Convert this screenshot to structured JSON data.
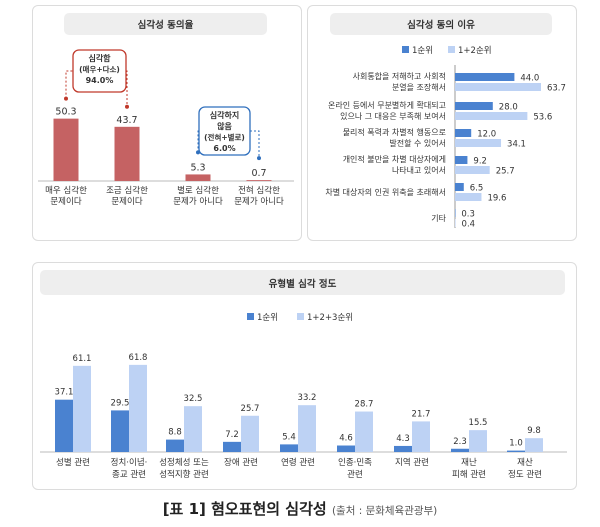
{
  "colors": {
    "bar1": "#c56263",
    "bar_dark": "#4a82d0",
    "bar_light": "#bdd2f4",
    "callout_red": "#c0392b",
    "callout_blue": "#2f6fbd"
  },
  "chart_data": [
    {
      "type": "bar",
      "title": "심각성 동의율",
      "categories": [
        "매우 심각한\n문제이다",
        "조금 심각한\n문제이다",
        "별로 심각한\n문제가 아니다",
        "전혀 심각한\n문제가 아니다"
      ],
      "values": [
        50.3,
        43.7,
        5.3,
        0.7
      ],
      "value_labels": [
        "50.3",
        "43.7",
        "5.3",
        "0.7"
      ],
      "ylim": [
        0,
        60
      ],
      "annotations": [
        {
          "lines": [
            "심각함",
            "(매우+다소)",
            "94.0%"
          ],
          "groups": [
            0,
            1
          ],
          "color": "red"
        },
        {
          "lines": [
            "심각하지",
            "않음",
            "(전혀+별로)",
            "6.0%"
          ],
          "groups": [
            2,
            3
          ],
          "color": "blue"
        }
      ]
    },
    {
      "type": "bar",
      "orientation": "horizontal",
      "title": "심각성 동의 이유",
      "legend": [
        "1순위",
        "1+2순위"
      ],
      "categories": [
        "사회통합을 저해하고 사회적\n분열을 조장해서",
        "온라인 등에서 무분별하게 확대되고\n있으나 그 대응은 부족해 보여서",
        "물리적 폭력과 차별적 행동으로\n발전할 수 있어서",
        "개인적 불만을 차별 대상자에게\n나타내고 있어서",
        "차별 대상자의 인권 위축을 초래해서",
        "기타"
      ],
      "series": [
        {
          "name": "1순위",
          "values": [
            44.0,
            28.0,
            12.0,
            9.2,
            6.5,
            0.3
          ],
          "labels": [
            "44.0",
            "28.0",
            "12.0",
            "9.2",
            "6.5",
            "0.3"
          ]
        },
        {
          "name": "1+2순위",
          "values": [
            63.7,
            53.6,
            34.1,
            25.7,
            19.6,
            0.4
          ],
          "labels": [
            "63.7",
            "53.6",
            "34.1",
            "25.7",
            "19.6",
            "0.4"
          ]
        }
      ],
      "xlim": [
        0,
        70
      ]
    },
    {
      "type": "bar",
      "title": "유형별 심각 정도",
      "legend": [
        "1순위",
        "1+2+3순위"
      ],
      "categories": [
        "성별 관련",
        "정치·이념·\n종교 관련",
        "성정체성 또는\n성적지향 관련",
        "장애 관련",
        "연령 관련",
        "인종·민족\n관련",
        "지역 관련",
        "재난\n피해 관련",
        "재산\n정도 관련"
      ],
      "series": [
        {
          "name": "1순위",
          "values": [
            37.1,
            29.5,
            8.8,
            7.2,
            5.4,
            4.6,
            4.3,
            2.3,
            1.0
          ],
          "labels": [
            "37.1",
            "29.5",
            "8.8",
            "7.2",
            "5.4",
            "4.6",
            "4.3",
            "2.3",
            "1.0"
          ]
        },
        {
          "name": "1+2+3순위",
          "values": [
            61.1,
            61.8,
            32.5,
            25.7,
            33.2,
            28.7,
            21.7,
            15.5,
            9.8
          ],
          "labels": [
            "61.1",
            "61.8",
            "32.5",
            "25.7",
            "33.2",
            "28.7",
            "21.7",
            "15.5",
            "9.8"
          ]
        }
      ],
      "ylim": [
        0,
        70
      ]
    }
  ],
  "caption": {
    "main": "[표 1] 혐오표현의 심각성",
    "source": "(출처 : 문화체육관광부)"
  }
}
